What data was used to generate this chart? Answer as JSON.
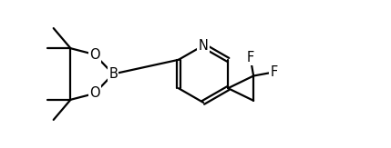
{
  "bg_color": "#ffffff",
  "line_color": "#000000",
  "line_width": 1.6,
  "font_size": 10.5,
  "figsize": [
    4.29,
    1.63
  ],
  "dpi": 100,
  "xlim": [
    -0.2,
    9.8
  ],
  "ylim": [
    0.3,
    5.0
  ]
}
